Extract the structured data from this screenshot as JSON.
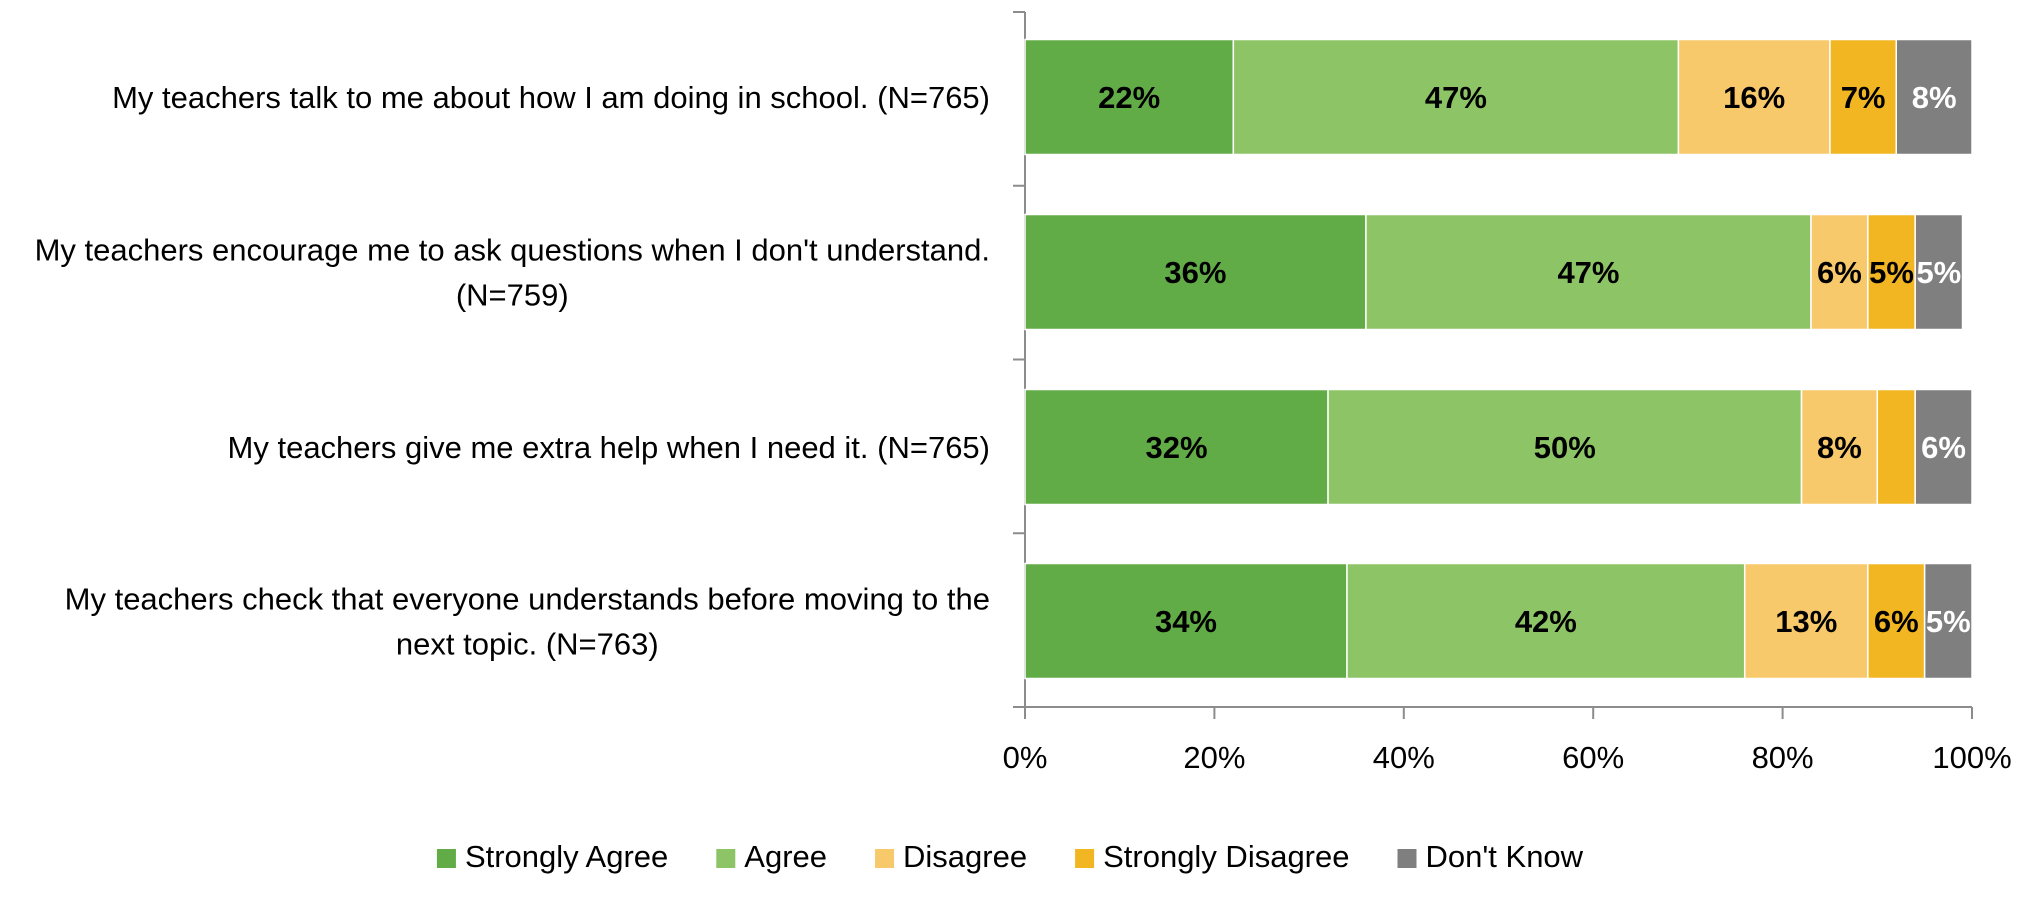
{
  "chart_data": {
    "type": "bar",
    "orientation": "horizontal",
    "stacked": true,
    "categories": [
      "My teachers talk to me about how I am doing in school. (N=765)",
      "My teachers encourage me to ask questions when I don't understand. (N=759)",
      "My teachers give me extra help when I need it. (N=765)",
      "My teachers check that everyone understands before moving to the next topic. (N=763)"
    ],
    "series": [
      {
        "name": "Strongly Agree",
        "color": "#62ac47",
        "label_color": "#000000",
        "values": [
          22,
          36,
          32,
          34
        ],
        "labels": [
          "22%",
          "36%",
          "32%",
          "34%"
        ]
      },
      {
        "name": "Agree",
        "color": "#8dc466",
        "label_color": "#000000",
        "values": [
          47,
          47,
          50,
          42
        ],
        "labels": [
          "47%",
          "47%",
          "50%",
          "42%"
        ]
      },
      {
        "name": "Disagree",
        "color": "#f8c96a",
        "label_color": "#000000",
        "values": [
          16,
          6,
          8,
          13
        ],
        "labels": [
          "16%",
          "6%",
          "8%",
          "13%"
        ]
      },
      {
        "name": "Strongly Disagree",
        "color": "#f1b622",
        "label_color": "#000000",
        "values": [
          7,
          5,
          4,
          6
        ],
        "labels": [
          "7%",
          "5%",
          "",
          "6%"
        ]
      },
      {
        "name": "Don't Know",
        "color": "#7f7f7f",
        "label_color": "#ffffff",
        "values": [
          8,
          5,
          6,
          5
        ],
        "labels": [
          "8%",
          "5%",
          "6%",
          "5%"
        ]
      }
    ],
    "xlim": [
      0,
      100
    ],
    "x_ticks": [
      "0%",
      "20%",
      "40%",
      "60%",
      "80%",
      "100%"
    ],
    "grid": false,
    "legend_position": "bottom"
  }
}
